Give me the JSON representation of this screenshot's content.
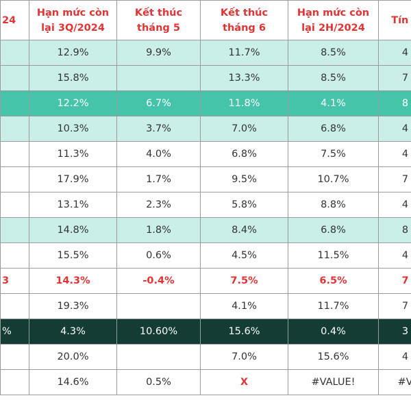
{
  "table": {
    "headers": [
      {
        "line1": "24",
        "line2": ""
      },
      {
        "line1": "Hạn mức còn",
        "line2": "lại 3Q/2024"
      },
      {
        "line1": "Kết thúc",
        "line2": "tháng 5"
      },
      {
        "line1": "Kết thúc",
        "line2": "tháng 6"
      },
      {
        "line1": "Hạn mức còn",
        "line2": "lại 2H/2024"
      },
      {
        "line1": "Tín d",
        "line2": ""
      }
    ],
    "rows": [
      {
        "style": "light",
        "cells": [
          "",
          "12.9%",
          "9.9%",
          "11.7%",
          "8.5%",
          "4"
        ]
      },
      {
        "style": "light",
        "cells": [
          "",
          "15.8%",
          "",
          "13.3%",
          "8.5%",
          "7"
        ]
      },
      {
        "style": "teal",
        "cells": [
          "",
          "12.2%",
          "6.7%",
          "11.8%",
          "4.1%",
          "8"
        ]
      },
      {
        "style": "light",
        "cells": [
          "",
          "10.3%",
          "3.7%",
          "7.0%",
          "6.8%",
          "4"
        ]
      },
      {
        "style": "white",
        "cells": [
          "",
          "11.3%",
          "4.0%",
          "6.8%",
          "7.5%",
          "4"
        ]
      },
      {
        "style": "white",
        "cells": [
          "",
          "17.9%",
          "1.7%",
          "9.5%",
          "10.7%",
          "7"
        ]
      },
      {
        "style": "white",
        "cells": [
          "",
          "13.1%",
          "2.3%",
          "5.8%",
          "8.8%",
          "4"
        ]
      },
      {
        "style": "light",
        "cells": [
          "",
          "14.8%",
          "1.8%",
          "8.4%",
          "6.8%",
          "8"
        ]
      },
      {
        "style": "white",
        "cells": [
          "",
          "15.5%",
          "0.6%",
          "4.5%",
          "11.5%",
          "4"
        ]
      },
      {
        "style": "redtext",
        "cells": [
          "3",
          "14.3%",
          "-0.4%",
          "7.5%",
          "6.5%",
          "7"
        ]
      },
      {
        "style": "white",
        "cells": [
          "",
          "19.3%",
          "",
          "4.1%",
          "11.7%",
          "7"
        ]
      },
      {
        "style": "dark",
        "cells": [
          "%",
          "4.3%",
          "10.60%",
          "15.6%",
          "0.4%",
          "3"
        ]
      },
      {
        "style": "white",
        "cells": [
          "",
          "20.0%",
          "",
          "7.0%",
          "15.6%",
          "4"
        ]
      },
      {
        "style": "white",
        "cells": [
          "",
          "14.6%",
          "0.5%",
          "X",
          "#VALUE!",
          "#V"
        ]
      }
    ]
  }
}
